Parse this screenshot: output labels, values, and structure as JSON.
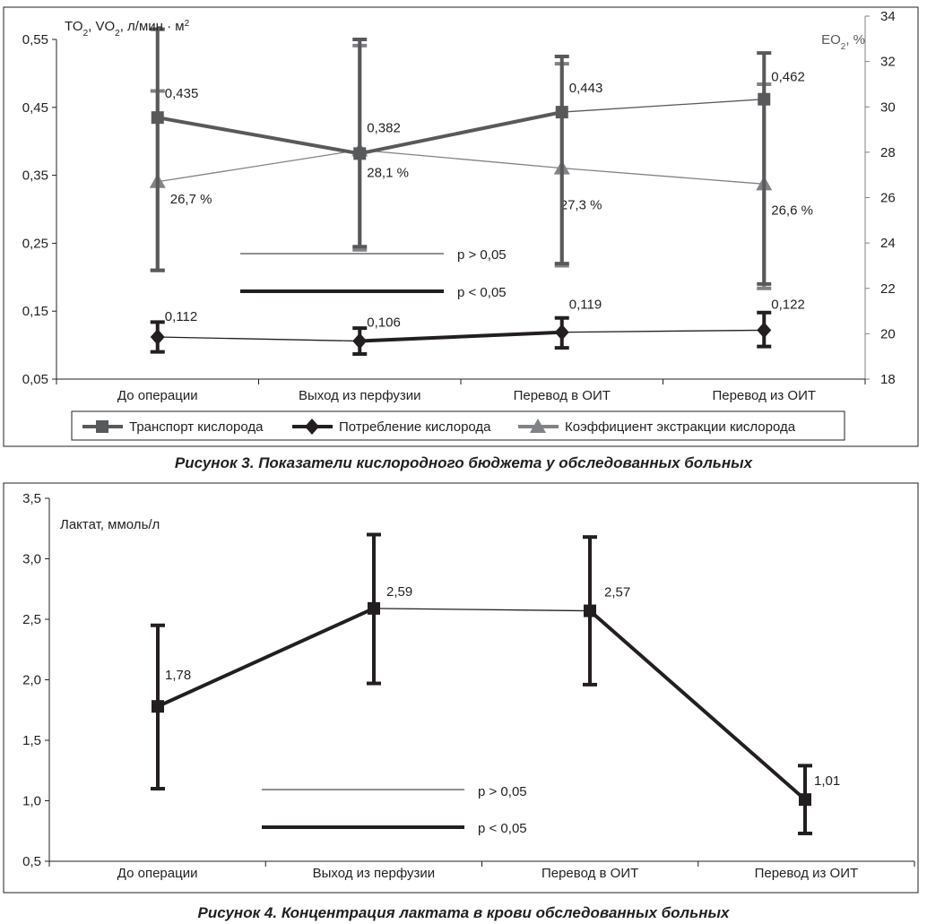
{
  "chart_data": [
    {
      "type": "line",
      "title": "",
      "caption": "Рисунок 3. Показатели кислородного бюджета у обследованных больных",
      "ylabel_left_parts": [
        "TO",
        "2",
        ", VO",
        "2",
        ", л/мин · м",
        "2"
      ],
      "ylabel_right_parts": [
        "EO",
        "2",
        ", %"
      ],
      "categories": [
        "До операции",
        "Выход из перфузии",
        "Перевод в ОИТ",
        "Перевод из ОИТ"
      ],
      "ylim_left": [
        0.05,
        0.55
      ],
      "yticks_left": [
        "0,05",
        "0,15",
        "0,25",
        "0,35",
        "0,45",
        "0,55"
      ],
      "ylim_right": [
        18,
        34
      ],
      "yticks_right": [
        "18",
        "20",
        "22",
        "24",
        "26",
        "28",
        "30",
        "32",
        "34"
      ],
      "series": [
        {
          "name": "Транспорт кислорода",
          "axis": "left",
          "color": "#58595b",
          "marker": "square",
          "values": [
            0.435,
            0.382,
            0.443,
            0.462
          ],
          "labels": [
            "0,435",
            "0,382",
            "0,443",
            "0,462"
          ],
          "err_low": [
            0.21,
            0.245,
            0.22,
            0.19
          ],
          "err_high": [
            0.565,
            0.55,
            0.525,
            0.53
          ],
          "segment_significant": [
            true,
            true,
            false
          ]
        },
        {
          "name": "Потребление кислорода",
          "axis": "left",
          "color": "#231f20",
          "marker": "diamond",
          "values": [
            0.112,
            0.106,
            0.119,
            0.122
          ],
          "labels": [
            "0,112",
            "0,106",
            "0,119",
            "0,122"
          ],
          "err_low": [
            0.09,
            0.087,
            0.096,
            0.098
          ],
          "err_high": [
            0.134,
            0.125,
            0.14,
            0.148
          ],
          "segment_significant": [
            false,
            true,
            false
          ]
        },
        {
          "name": "Коэффициент экстракции кислорода",
          "axis": "right",
          "color": "#808285",
          "marker": "triangle",
          "values": [
            26.7,
            28.1,
            27.3,
            26.6
          ],
          "labels": [
            "26,7 %",
            "28,1 %",
            "27,3 %",
            "26,6 %"
          ],
          "err_low": [
            22.8,
            23.7,
            23,
            22
          ],
          "err_high": [
            30.7,
            32.7,
            31.9,
            31
          ],
          "segment_significant": [
            false,
            false,
            false
          ]
        }
      ],
      "significance_key": {
        "thin": "p > 0,05",
        "thick": "p < 0,05"
      },
      "legend": "bottom",
      "grid": false
    },
    {
      "type": "line",
      "title": "",
      "caption": "Рисунок 4.  Концентрация лактата в крови обследованных больных",
      "ylabel": "Лактат, ммоль/л",
      "categories": [
        "До операции",
        "Выход из перфузии",
        "Перевод в ОИТ",
        "Перевод из ОИТ"
      ],
      "ylim": [
        0.5,
        3.5
      ],
      "yticks": [
        "0,5",
        "1,0",
        "1,5",
        "2,0",
        "2,5",
        "3,0",
        "3,5"
      ],
      "series": [
        {
          "name": "",
          "color": "#231f20",
          "marker": "square",
          "values": [
            1.78,
            2.59,
            2.57,
            1.01
          ],
          "labels": [
            "1,78",
            "2,59",
            "2,57",
            "1,01"
          ],
          "err_low": [
            1.1,
            1.97,
            1.96,
            0.73
          ],
          "err_high": [
            2.45,
            3.2,
            3.18,
            1.29
          ],
          "segment_significant": [
            true,
            false,
            true
          ]
        }
      ],
      "significance_key": {
        "thin": "p > 0,05",
        "thick": "p < 0,05"
      },
      "grid": false
    }
  ]
}
